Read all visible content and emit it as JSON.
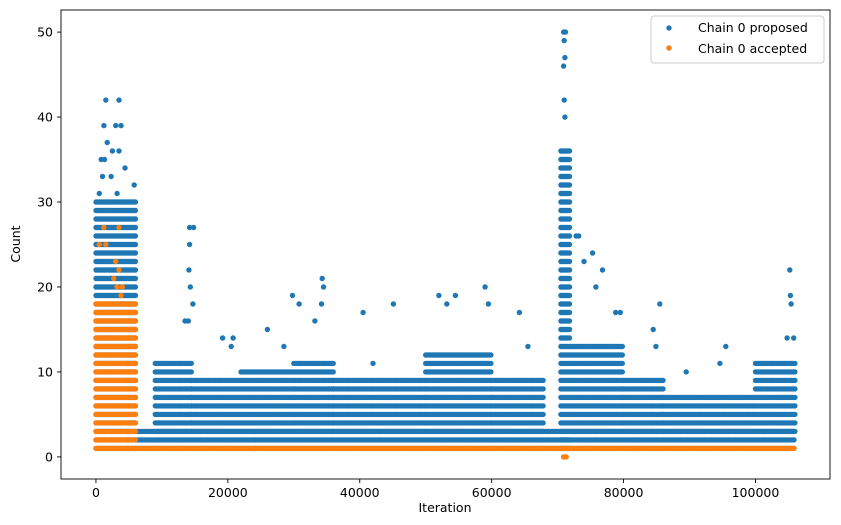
{
  "chart_data": {
    "type": "scatter",
    "title": "",
    "xlabel": "Iteration",
    "ylabel": "Count",
    "xlim": [
      -5300,
      111300
    ],
    "ylim": [
      -2.6,
      52.6
    ],
    "xticks": [
      0,
      20000,
      40000,
      60000,
      80000,
      100000
    ],
    "yticks": [
      0,
      10,
      20,
      30,
      40,
      50
    ],
    "grid": false,
    "legend_position": "top-right",
    "series": [
      {
        "name": "Chain 0 proposed",
        "color": "#1f77b4",
        "clusters": [
          {
            "x_range": [
              0,
              6000
            ],
            "y_min": 1,
            "y_max": 30,
            "outliers": [
              [
                1500,
                42
              ],
              [
                3500,
                42
              ],
              [
                1200,
                39
              ],
              [
                3000,
                39
              ],
              [
                3800,
                39
              ],
              [
                1700,
                37
              ],
              [
                2500,
                36
              ],
              [
                3500,
                36
              ],
              [
                800,
                35
              ],
              [
                1300,
                35
              ],
              [
                4400,
                34
              ],
              [
                1000,
                33
              ],
              [
                2300,
                33
              ],
              [
                5800,
                32
              ],
              [
                500,
                31
              ],
              [
                3200,
                31
              ]
            ]
          },
          {
            "x_range": [
              6000,
              106000
            ],
            "y_min": 1,
            "y_max": 3
          },
          {
            "x_range": [
              9000,
              14500
            ],
            "y_min": 3,
            "y_max": 11,
            "outliers": [
              [
                14200,
                27
              ],
              [
                14800,
                27
              ],
              [
                14200,
                25
              ],
              [
                14100,
                22
              ],
              [
                14300,
                20
              ],
              [
                14700,
                18
              ],
              [
                13500,
                16
              ],
              [
                14000,
                16
              ]
            ]
          },
          {
            "x_range": [
              14500,
              22000
            ],
            "y_min": 3,
            "y_max": 9,
            "outliers": [
              [
                19200,
                14
              ],
              [
                20800,
                14
              ],
              [
                20500,
                13
              ]
            ]
          },
          {
            "x_range": [
              22000,
              30000
            ],
            "y_min": 3,
            "y_max": 10,
            "outliers": [
              [
                26000,
                15
              ],
              [
                29800,
                19
              ],
              [
                30800,
                18
              ],
              [
                28500,
                13
              ]
            ]
          },
          {
            "x_range": [
              30000,
              36000
            ],
            "y_min": 3,
            "y_max": 11,
            "outliers": [
              [
                34300,
                21
              ],
              [
                34500,
                20
              ],
              [
                34200,
                18
              ],
              [
                33200,
                16
              ]
            ]
          },
          {
            "x_range": [
              36000,
              50000
            ],
            "y_min": 3,
            "y_max": 9,
            "outliers": [
              [
                40500,
                17
              ],
              [
                45100,
                18
              ],
              [
                42000,
                11
              ]
            ]
          },
          {
            "x_range": [
              50000,
              60000
            ],
            "y_min": 3,
            "y_max": 12,
            "outliers": [
              [
                52000,
                19
              ],
              [
                54500,
                19
              ],
              [
                53200,
                18
              ],
              [
                59000,
                20
              ],
              [
                59500,
                18
              ]
            ]
          },
          {
            "x_range": [
              60000,
              68000
            ],
            "y_min": 3,
            "y_max": 9,
            "outliers": [
              [
                64200,
                17
              ],
              [
                65500,
                13
              ]
            ]
          },
          {
            "x_range": [
              70500,
              72000
            ],
            "y_min": 1,
            "y_max": 36,
            "outliers": [
              [
                70900,
                50
              ],
              [
                71200,
                50
              ],
              [
                71000,
                49
              ],
              [
                71100,
                47
              ],
              [
                70900,
                46
              ],
              [
                71000,
                42
              ],
              [
                71100,
                40
              ]
            ]
          },
          {
            "x_range": [
              72000,
              80000
            ],
            "y_min": 3,
            "y_max": 13,
            "outliers": [
              [
                72800,
                26
              ],
              [
                73200,
                26
              ],
              [
                75300,
                24
              ],
              [
                74000,
                23
              ],
              [
                76800,
                22
              ],
              [
                75800,
                20
              ],
              [
                79500,
                17
              ],
              [
                78800,
                17
              ]
            ]
          },
          {
            "x_range": [
              80000,
              86000
            ],
            "y_min": 3,
            "y_max": 9,
            "outliers": [
              [
                84500,
                15
              ],
              [
                85500,
                18
              ],
              [
                84900,
                13
              ]
            ]
          },
          {
            "x_range": [
              86000,
              100000
            ],
            "y_min": 3,
            "y_max": 7,
            "outliers": [
              [
                89500,
                10
              ],
              [
                95500,
                13
              ],
              [
                94600,
                11
              ]
            ]
          },
          {
            "x_range": [
              100000,
              106000
            ],
            "y_min": 3,
            "y_max": 11,
            "outliers": [
              [
                105200,
                22
              ],
              [
                105300,
                19
              ],
              [
                105400,
                18
              ],
              [
                104800,
                14
              ],
              [
                105800,
                14
              ]
            ]
          }
        ]
      },
      {
        "name": "Chain 0 accepted",
        "color": "#ff7f0e",
        "clusters": [
          {
            "x_range": [
              0,
              6000
            ],
            "y_min": 1,
            "y_max": 18,
            "outliers": [
              [
                1200,
                27
              ],
              [
                3500,
                27
              ],
              [
                500,
                25
              ],
              [
                1500,
                25
              ],
              [
                3000,
                23
              ],
              [
                3500,
                22
              ],
              [
                2700,
                21
              ],
              [
                3200,
                20
              ],
              [
                4000,
                20
              ],
              [
                3800,
                19
              ]
            ]
          },
          {
            "x_range": [
              6000,
              106000
            ],
            "y_min": 1,
            "y_max": 1,
            "outliers": [
              [
                70900,
                0
              ],
              [
                71100,
                0
              ],
              [
                71300,
                0
              ]
            ]
          }
        ]
      }
    ]
  }
}
